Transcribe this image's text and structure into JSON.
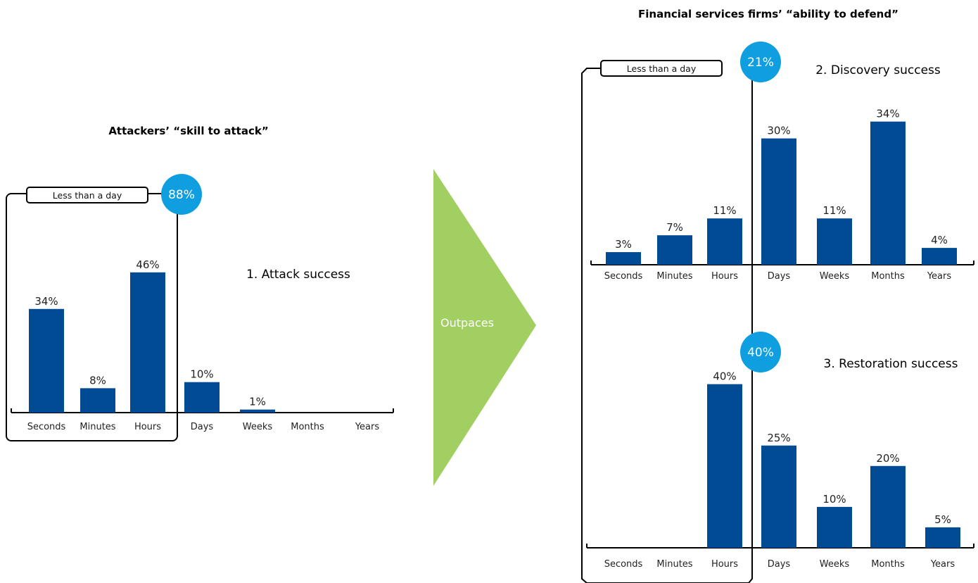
{
  "colors": {
    "bar": "#004b93",
    "badge": "#0f9ee0",
    "arrow": "#a2cf62",
    "axis": "#000000"
  },
  "left_title": "Attackers’ “skill to attack”",
  "right_title": "Financial services firms’ “ability to defend”",
  "arrow_label": "Outpaces",
  "left_bracket": {
    "label": "Less than a day",
    "badge": "88%"
  },
  "right_bracket": {
    "label": "Less than a day",
    "badge_top": "21%",
    "badge_bottom": "40%"
  },
  "chart_data": [
    {
      "type": "bar",
      "title": "1. Attack success",
      "categories": [
        "Seconds",
        "Minutes",
        "Hours",
        "Days",
        "Weeks",
        "Months",
        "Years"
      ],
      "values": [
        34,
        8,
        46,
        10,
        1,
        null,
        null
      ],
      "value_labels": [
        "34%",
        "8%",
        "46%",
        "10%",
        "1%",
        "",
        ""
      ],
      "unit": "%"
    },
    {
      "type": "bar",
      "title": "2. Discovery success",
      "categories": [
        "Seconds",
        "Minutes",
        "Hours",
        "Days",
        "Weeks",
        "Months",
        "Years"
      ],
      "values": [
        3,
        7,
        11,
        30,
        11,
        34,
        4
      ],
      "value_labels": [
        "3%",
        "7%",
        "11%",
        "30%",
        "11%",
        "34%",
        "4%"
      ],
      "unit": "%"
    },
    {
      "type": "bar",
      "title": "3. Restoration success",
      "categories": [
        "Seconds",
        "Minutes",
        "Hours",
        "Days",
        "Weeks",
        "Months",
        "Years"
      ],
      "values": [
        null,
        null,
        40,
        25,
        10,
        20,
        5
      ],
      "value_labels": [
        "",
        "",
        "40%",
        "25%",
        "10%",
        "20%",
        "5%"
      ],
      "unit": "%"
    }
  ]
}
